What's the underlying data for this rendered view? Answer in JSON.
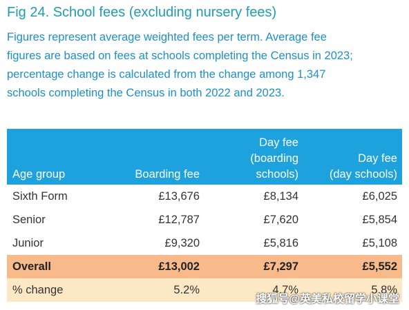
{
  "header": {
    "title": "Fig 24. School fees (excluding nursery fees)",
    "subtitle_lines": [
      "Figures represent average weighted fees per term. Average fee",
      "figures are based on fees at schools completing the Census in 2023;",
      "percentage change is calculated from the change among 1,347",
      "schools completing the Census in both 2022 and 2023."
    ]
  },
  "table": {
    "columns": [
      [
        "Age group"
      ],
      [
        "Boarding fee"
      ],
      [
        "Day fee",
        "(boarding",
        "schools)"
      ],
      [
        "Day fee",
        "(day schools)"
      ]
    ],
    "rows": [
      [
        "Sixth Form",
        "£13,676",
        "£8,134",
        "£6,025"
      ],
      [
        "Senior",
        "£12,787",
        "£7,620",
        "£5,854"
      ],
      [
        "Junior",
        "£9,320",
        "£5,816",
        "£5,108"
      ],
      [
        "Overall",
        "£13,002",
        "£7,297",
        "£5,552"
      ],
      [
        "% change",
        "5.2%",
        "4.7%",
        "5.8%"
      ]
    ]
  },
  "watermark": "搜狐号@英美私校留学小课堂"
}
